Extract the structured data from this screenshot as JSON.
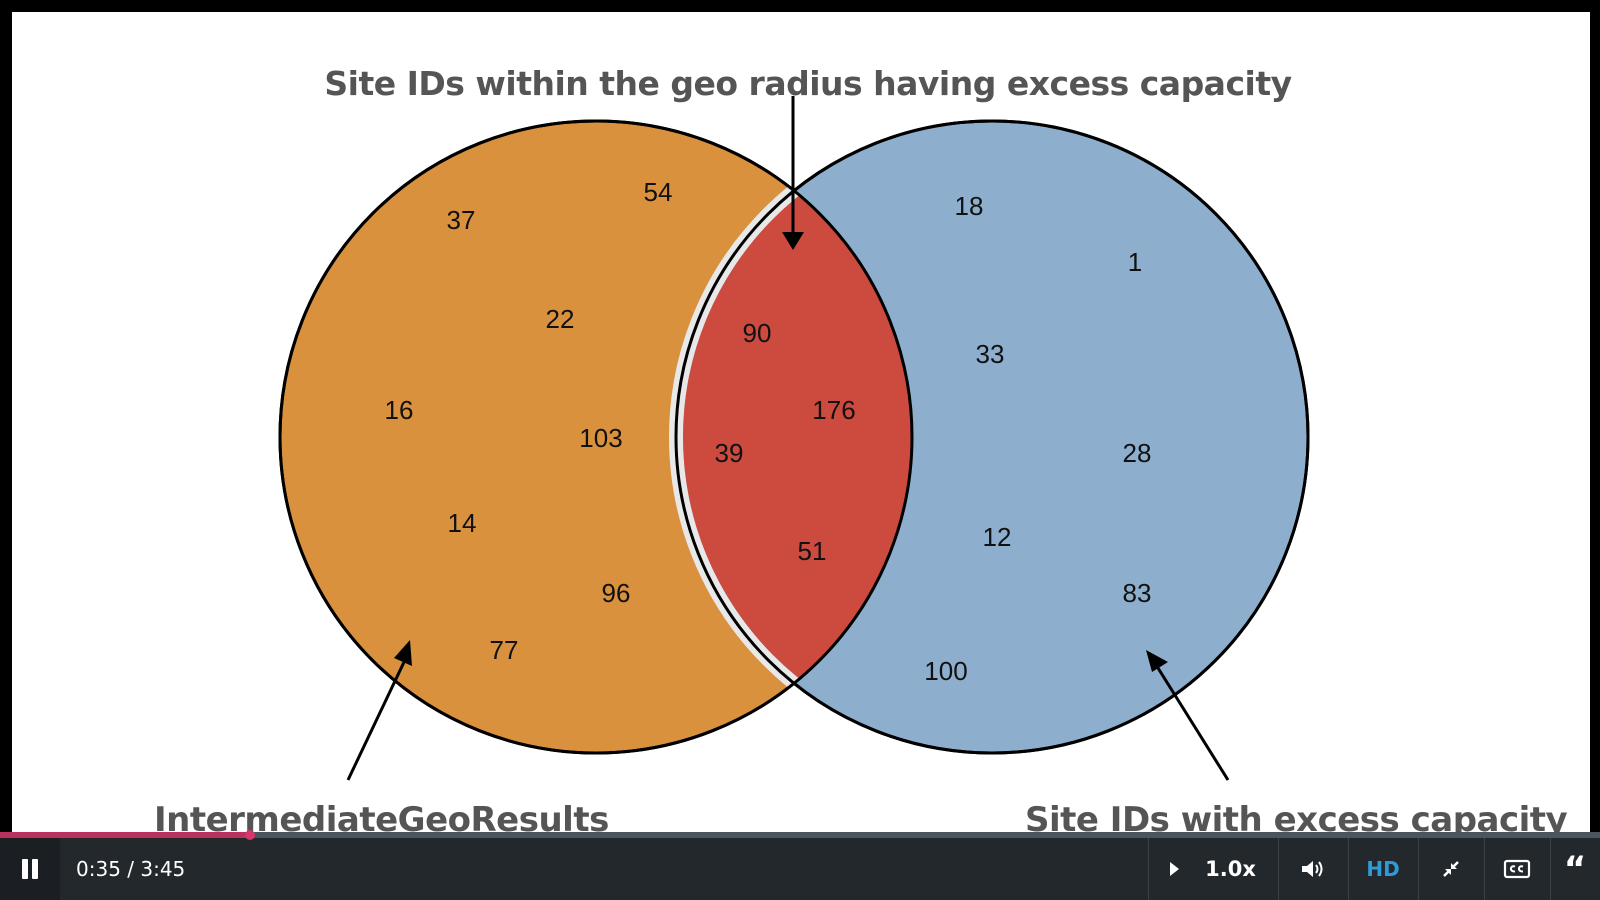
{
  "slide": {
    "title": "Site IDs within the geo radius having excess capacity",
    "left_set_label": "IntermediateGeoResults",
    "right_set_label": "Site IDs with excess capacity",
    "left_only_ids": [
      "37",
      "54",
      "22",
      "16",
      "103",
      "14",
      "96",
      "77"
    ],
    "intersection_ids": [
      "90",
      "176",
      "39",
      "51"
    ],
    "right_only_ids": [
      "18",
      "1",
      "33",
      "28",
      "12",
      "83",
      "100"
    ],
    "colors": {
      "left_set": "#D9913E",
      "right_set": "#8DAFCD",
      "intersection": "#CC4A3E"
    }
  },
  "player": {
    "current_time": "0:35",
    "duration": "3:45",
    "time_display": "0:35 / 3:45",
    "progress_fraction": 0.156,
    "speed_label": "1.0x",
    "quality_label": "HD",
    "accent_color": "#B8325D",
    "icons": {
      "play_pause": "pause-icon",
      "speed": "play-triangle-icon",
      "volume": "speaker-icon",
      "fullscreen": "exit-fullscreen-icon",
      "captions": "closed-captions-icon",
      "transcript": "quote-icon"
    }
  }
}
